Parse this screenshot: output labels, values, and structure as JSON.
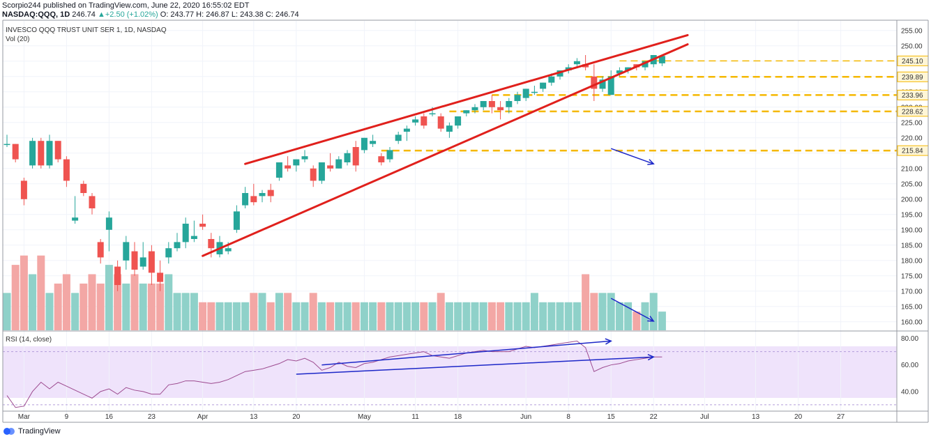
{
  "header": {
    "publish_line": "Scorpio244 published on TradingView.com, June 22, 2020 16:55:02 EDT",
    "symbol": "NASDAQ:QQQ, 1D",
    "last": "246.74",
    "change": "+2.50 (+1.02%)",
    "open": "O: 243.77",
    "high": "H: 246.87",
    "low": "L: 243.38",
    "close": "C: 246.74"
  },
  "pane_titles": {
    "main": "INVESCO QQQ TRUST UNIT SER 1, 1D, NASDAQ",
    "volume": "Vol (20)",
    "rsi": "RSI (14, close)"
  },
  "footer": {
    "brand": "TradingView"
  },
  "colors": {
    "up": "#26a69a",
    "down": "#ef5350",
    "vol_up": "#8fd1c9",
    "vol_down": "#f3a7a5",
    "trendline": "#e0201c",
    "support": "#f5b800",
    "arrow": "#1c27c8",
    "rsi_line": "#9c4a8f",
    "rsi_band": "#efe3fb"
  },
  "chart_data": [
    {
      "type": "candlestick",
      "title": "INVESCO QQQ TRUST UNIT SER 1, 1D, NASDAQ",
      "ylim": [
        157,
        257
      ],
      "y_ticks": [
        160,
        165,
        170,
        175,
        180,
        185,
        190,
        195,
        200,
        205,
        210,
        215,
        220,
        225,
        230,
        235,
        240,
        245,
        250,
        255
      ],
      "x_tick_labels": [
        {
          "i": 2,
          "label": "Mar"
        },
        {
          "i": 7,
          "label": "9"
        },
        {
          "i": 12,
          "label": "16"
        },
        {
          "i": 17,
          "label": "23"
        },
        {
          "i": 23,
          "label": "Apr"
        },
        {
          "i": 29,
          "label": "13"
        },
        {
          "i": 34,
          "label": "20"
        },
        {
          "i": 42,
          "label": "May"
        },
        {
          "i": 48,
          "label": "11"
        },
        {
          "i": 53,
          "label": "18"
        },
        {
          "i": 61,
          "label": "Jun"
        },
        {
          "i": 66,
          "label": "8"
        },
        {
          "i": 71,
          "label": "15"
        },
        {
          "i": 76,
          "label": "22"
        },
        {
          "i": 82,
          "label": "Jul"
        },
        {
          "i": 88,
          "label": "13"
        },
        {
          "i": 93,
          "label": "20"
        },
        {
          "i": 98,
          "label": "27"
        }
      ],
      "candles": [
        [
          218,
          221,
          217,
          218
        ],
        [
          218,
          218,
          212,
          213
        ],
        [
          206,
          207,
          198,
          200
        ],
        [
          211,
          220,
          210,
          219
        ],
        [
          219,
          220,
          210,
          211
        ],
        [
          211,
          221,
          210,
          219
        ],
        [
          219,
          219,
          212,
          213
        ],
        [
          213,
          214,
          204,
          206
        ],
        [
          193,
          201,
          192,
          194
        ],
        [
          205,
          206,
          201,
          202
        ],
        [
          201,
          202,
          195,
          197
        ],
        [
          186,
          187,
          179,
          181
        ],
        [
          190,
          196,
          183,
          194
        ],
        [
          178,
          180,
          170,
          172
        ],
        [
          180,
          188,
          177,
          186
        ],
        [
          183,
          186,
          175,
          177
        ],
        [
          178,
          186,
          177,
          181
        ],
        [
          183,
          185,
          172,
          176
        ],
        [
          176,
          180,
          170,
          173
        ],
        [
          181,
          186,
          179,
          184
        ],
        [
          184,
          189,
          183,
          186
        ],
        [
          186,
          194,
          184,
          192
        ],
        [
          187,
          193,
          186,
          188
        ],
        [
          192,
          195,
          190,
          191
        ],
        [
          187,
          189,
          181,
          184
        ],
        [
          182,
          188,
          181,
          186
        ],
        [
          183,
          186,
          182,
          184
        ],
        [
          190,
          198,
          189,
          196
        ],
        [
          198,
          204,
          197,
          202
        ],
        [
          201,
          205,
          198,
          199
        ],
        [
          201,
          203,
          199,
          202
        ],
        [
          203,
          205,
          199,
          201
        ],
        [
          207,
          212,
          206,
          212
        ],
        [
          211,
          214,
          209,
          210
        ],
        [
          211,
          213,
          209,
          213
        ],
        [
          213,
          216,
          212,
          214
        ],
        [
          210,
          211,
          204,
          206
        ],
        [
          206,
          212,
          205,
          212
        ],
        [
          211,
          215,
          209,
          210
        ],
        [
          210,
          214,
          210,
          213
        ],
        [
          212,
          216,
          211,
          215
        ],
        [
          217,
          219,
          209,
          211
        ],
        [
          216,
          220,
          215,
          220
        ],
        [
          218,
          221,
          217,
          219
        ],
        [
          214,
          215,
          211,
          212
        ],
        [
          213,
          217,
          212,
          216
        ],
        [
          219,
          222,
          218,
          221
        ],
        [
          222,
          224,
          219,
          223
        ],
        [
          225,
          227,
          224,
          226
        ],
        [
          227,
          228,
          223,
          224
        ],
        [
          228,
          230,
          227,
          228
        ],
        [
          227,
          228,
          222,
          223
        ],
        [
          222,
          225,
          220,
          224
        ],
        [
          224,
          227,
          223,
          227
        ],
        [
          228,
          229,
          227,
          229
        ],
        [
          229,
          231,
          228,
          230
        ],
        [
          230,
          232,
          229,
          232
        ],
        [
          232,
          234,
          228,
          230
        ],
        [
          230,
          232,
          226,
          229
        ],
        [
          230,
          233,
          228,
          232
        ],
        [
          232,
          235,
          231,
          234
        ],
        [
          233,
          236,
          232,
          236
        ],
        [
          235,
          237,
          234,
          235
        ],
        [
          236,
          238,
          235,
          238
        ],
        [
          238,
          241,
          237,
          240
        ],
        [
          240,
          242,
          239,
          242
        ],
        [
          242,
          244,
          241,
          243
        ],
        [
          244,
          246,
          243,
          245
        ],
        [
          244,
          247,
          242,
          243
        ],
        [
          240,
          244,
          232,
          236
        ],
        [
          236,
          240,
          235,
          239
        ],
        [
          234,
          242,
          234,
          240
        ],
        [
          241,
          243,
          240,
          242
        ],
        [
          242,
          243,
          241,
          243
        ],
        [
          244,
          244,
          242,
          243
        ],
        [
          243,
          245,
          242,
          245
        ],
        [
          244,
          247,
          243,
          247
        ],
        [
          244.3,
          246.9,
          243.4,
          246.7
        ]
      ],
      "horizontal_levels": [
        "245.10",
        "239.89",
        "233.96",
        "228.62",
        "215.84"
      ]
    },
    {
      "type": "bar",
      "title": "Vol (20)",
      "values": [
        40,
        70,
        80,
        60,
        80,
        40,
        50,
        60,
        40,
        50,
        60,
        50,
        70,
        60,
        50,
        60,
        50,
        50,
        50,
        60,
        40,
        40,
        40,
        30,
        30,
        30,
        30,
        30,
        30,
        40,
        40,
        30,
        40,
        40,
        30,
        30,
        40,
        30,
        30,
        30,
        30,
        30,
        30,
        30,
        30,
        30,
        30,
        30,
        30,
        30,
        30,
        40,
        30,
        30,
        30,
        30,
        30,
        30,
        30,
        30,
        30,
        30,
        40,
        30,
        30,
        30,
        30,
        30,
        60,
        40,
        40,
        40,
        30,
        30,
        20,
        30,
        40,
        20
      ]
    },
    {
      "type": "line",
      "title": "RSI (14, close)",
      "ylim": [
        20,
        85
      ],
      "y_ticks": [
        40,
        60,
        80
      ],
      "band": [
        30,
        70
      ],
      "values": [
        37,
        28,
        29,
        40,
        47,
        42,
        47,
        44,
        41,
        38,
        35,
        40,
        42,
        38,
        43,
        41,
        40,
        38,
        38,
        45,
        46,
        48,
        48,
        47,
        46,
        47,
        49,
        52,
        55,
        56,
        57,
        59,
        61,
        64,
        63,
        65,
        62,
        56,
        58,
        62,
        59,
        58,
        61,
        62,
        64,
        66,
        67,
        68,
        69,
        70,
        67,
        66,
        65,
        67,
        69,
        70,
        71,
        70,
        70,
        70,
        72,
        74,
        73,
        74,
        75,
        76,
        77,
        78,
        73,
        55,
        58,
        60,
        61,
        63,
        64,
        65,
        66,
        66
      ]
    }
  ],
  "annotations": {
    "wedge_upper": [
      [
        28,
        211.5
      ],
      [
        80,
        253.5
      ]
    ],
    "wedge_lower": [
      [
        23,
        181.5
      ],
      [
        80,
        250.5
      ]
    ],
    "price_arrow": [
      [
        71,
        216.5
      ],
      [
        76,
        211.5
      ]
    ],
    "volume_arrow": [
      [
        71,
        171
      ],
      [
        76,
        161
      ]
    ],
    "rsi_upper_arrow": [
      [
        37,
        60
      ],
      [
        71,
        78
      ]
    ],
    "rsi_lower_arrow": [
      [
        34,
        53
      ],
      [
        76,
        66
      ]
    ]
  }
}
